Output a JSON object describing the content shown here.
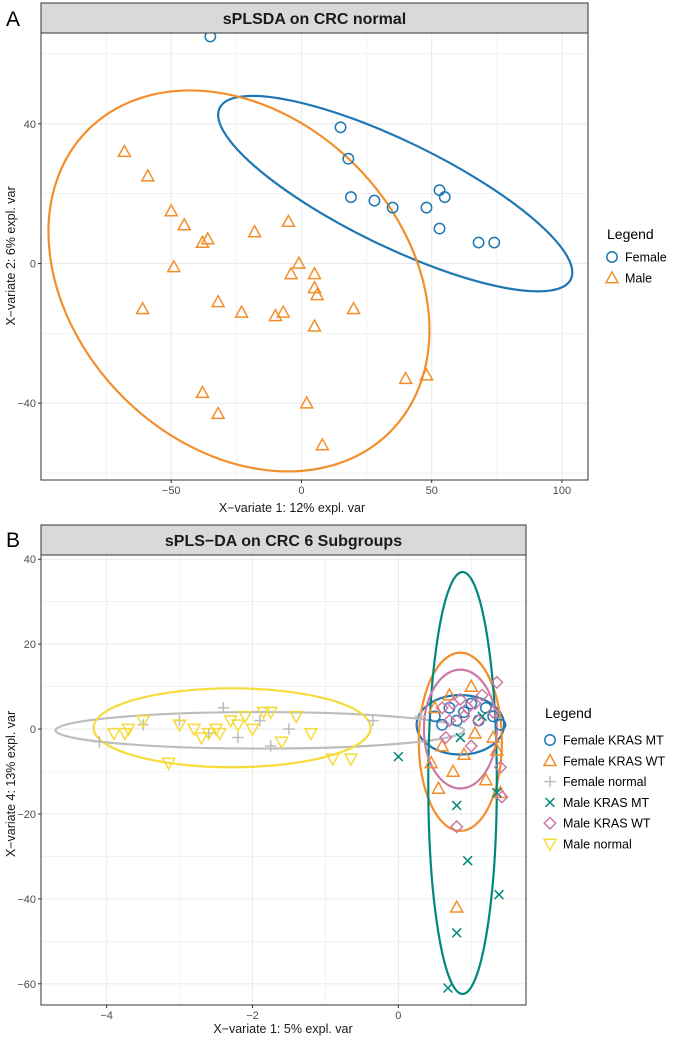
{
  "chart_data": [
    {
      "panel_label": "A",
      "type": "scatter",
      "title": "sPLSDA on CRC normal",
      "xlabel": "X−variate 1: 12% expl. var",
      "ylabel": "X−variate 2: 6% expl. var",
      "xlim": [
        -100,
        110
      ],
      "ylim": [
        -62,
        66
      ],
      "xticks": [
        -50,
        0,
        50,
        100
      ],
      "yticks": [
        -40,
        0,
        40
      ],
      "legend_title": "Legend",
      "legend_position": "right",
      "grid": true,
      "series": [
        {
          "name": "Female",
          "color": "#1f78b4",
          "marker": "circle",
          "points": [
            [
              -35,
              65
            ],
            [
              15,
              39
            ],
            [
              18,
              30
            ],
            [
              19,
              19
            ],
            [
              28,
              18
            ],
            [
              35,
              16
            ],
            [
              48,
              16
            ],
            [
              53,
              21
            ],
            [
              55,
              19
            ],
            [
              53,
              10
            ],
            [
              68,
              6
            ],
            [
              74,
              6
            ]
          ],
          "ellipse": {
            "center": [
              36,
              20
            ],
            "semi_axes": [
              75,
              15
            ],
            "angle_deg": -26
          }
        },
        {
          "name": "Male",
          "color": "#f28e2b",
          "marker": "triangle",
          "points": [
            [
              -68,
              32
            ],
            [
              -59,
              25
            ],
            [
              -50,
              15
            ],
            [
              -45,
              11
            ],
            [
              -38,
              6
            ],
            [
              -36,
              7
            ],
            [
              -49,
              -1
            ],
            [
              -61,
              -13
            ],
            [
              -32,
              -11
            ],
            [
              -23,
              -14
            ],
            [
              -18,
              9
            ],
            [
              -10,
              -15
            ],
            [
              -5,
              12
            ],
            [
              -4,
              -3
            ],
            [
              -1,
              0
            ],
            [
              -7,
              -14
            ],
            [
              5,
              -7
            ],
            [
              6,
              -9
            ],
            [
              5,
              -3
            ],
            [
              5,
              -18
            ],
            [
              20,
              -13
            ],
            [
              -38,
              -37
            ],
            [
              -32,
              -43
            ],
            [
              2,
              -40
            ],
            [
              40,
              -33
            ],
            [
              48,
              -32
            ],
            [
              8,
              -52
            ]
          ],
          "ellipse": {
            "center": [
              -24,
              -5
            ],
            "semi_axes": [
              82,
              47
            ],
            "angle_deg": -45
          }
        }
      ]
    },
    {
      "panel_label": "B",
      "type": "scatter",
      "title": "sPLS−DA on CRC 6 Subgroups",
      "xlabel": "X−variate 1: 5% expl. var",
      "ylabel": "X−variate 4: 13% expl. var",
      "xlim": [
        -4.9,
        1.75
      ],
      "ylim": [
        -65,
        41
      ],
      "xticks": [
        -4,
        -2,
        0
      ],
      "yticks": [
        -60,
        -40,
        -20,
        0,
        20,
        40
      ],
      "legend_title": "Legend",
      "legend_position": "right",
      "grid": true,
      "series": [
        {
          "name": "Female KRAS MT",
          "color": "#1f78b4",
          "marker": "circle",
          "points": [
            [
              0.5,
              3
            ],
            [
              0.7,
              5
            ],
            [
              0.9,
              4
            ],
            [
              1.1,
              2
            ],
            [
              1.3,
              3
            ],
            [
              0.6,
              1
            ],
            [
              1.0,
              6
            ],
            [
              0.8,
              2
            ],
            [
              1.2,
              5
            ],
            [
              1.4,
              1
            ]
          ],
          "ellipse": {
            "center": [
              0.85,
              1
            ],
            "semi_axes": [
              0.6,
              7
            ],
            "angle_deg": 0
          }
        },
        {
          "name": "Female KRAS WT",
          "color": "#f28e2b",
          "marker": "triangle",
          "points": [
            [
              0.45,
              -8
            ],
            [
              0.6,
              -4
            ],
            [
              0.75,
              -10
            ],
            [
              0.9,
              -6
            ],
            [
              1.05,
              -1
            ],
            [
              1.2,
              -12
            ],
            [
              1.35,
              -5
            ],
            [
              0.55,
              -14
            ],
            [
              0.8,
              -42
            ],
            [
              1.4,
              -15
            ],
            [
              0.7,
              8
            ],
            [
              1.0,
              10
            ],
            [
              0.5,
              5
            ],
            [
              1.3,
              -2
            ]
          ],
          "ellipse": {
            "center": [
              0.85,
              -3
            ],
            "semi_axes": [
              0.57,
              21
            ],
            "angle_deg": 0
          }
        },
        {
          "name": "Female normal",
          "color": "#bdbdbd",
          "marker": "plus",
          "points": [
            [
              -4.1,
              -3
            ],
            [
              -3.5,
              1
            ],
            [
              -3.0,
              2
            ],
            [
              -2.6,
              -1
            ],
            [
              -2.4,
              5
            ],
            [
              -2.2,
              -2
            ],
            [
              -1.9,
              2
            ],
            [
              -1.75,
              -4
            ],
            [
              -1.5,
              0
            ],
            [
              -0.35,
              2
            ],
            [
              0.3,
              3
            ]
          ],
          "ellipse": {
            "center": [
              -1.9,
              -0.3
            ],
            "semi_axes": [
              2.8,
              4.3
            ],
            "angle_deg": 0
          }
        },
        {
          "name": "Male KRAS MT",
          "color": "#00897b",
          "marker": "x",
          "points": [
            [
              0.0,
              -6.5
            ],
            [
              0.8,
              -18
            ],
            [
              0.95,
              -31
            ],
            [
              1.38,
              -39
            ],
            [
              0.8,
              -48
            ],
            [
              0.68,
              -61
            ],
            [
              1.35,
              -15
            ],
            [
              0.85,
              -2
            ],
            [
              1.15,
              3
            ]
          ],
          "ellipse": {
            "center": [
              0.88,
              -12.7
            ],
            "semi_axes": [
              0.47,
              49.7
            ],
            "angle_deg": 0
          }
        },
        {
          "name": "Male KRAS WT",
          "color": "#cc79a7",
          "marker": "diamond",
          "points": [
            [
              0.6,
              5
            ],
            [
              0.75,
              6
            ],
            [
              0.85,
              7
            ],
            [
              0.95,
              5
            ],
            [
              1.05,
              6
            ],
            [
              1.15,
              8
            ],
            [
              0.7,
              2
            ],
            [
              0.9,
              3
            ],
            [
              1.1,
              2
            ],
            [
              1.3,
              4
            ],
            [
              1.35,
              11
            ],
            [
              1.4,
              -9
            ],
            [
              0.8,
              -23
            ],
            [
              1.42,
              -16
            ],
            [
              0.65,
              -2
            ],
            [
              1.0,
              -4
            ]
          ],
          "ellipse": {
            "center": [
              0.85,
              0
            ],
            "semi_axes": [
              0.5,
              14
            ],
            "angle_deg": 0
          }
        },
        {
          "name": "Male normal",
          "color": "#f5dc3a",
          "marker": "triangle-down",
          "points": [
            [
              -3.9,
              -1
            ],
            [
              -3.75,
              -1
            ],
            [
              -3.7,
              0
            ],
            [
              -3.5,
              2
            ],
            [
              -3.15,
              -8
            ],
            [
              -3.0,
              1
            ],
            [
              -2.8,
              0
            ],
            [
              -2.7,
              -2
            ],
            [
              -2.6,
              -1
            ],
            [
              -2.5,
              0
            ],
            [
              -2.45,
              -1
            ],
            [
              -2.3,
              2
            ],
            [
              -2.2,
              1
            ],
            [
              -2.0,
              0
            ],
            [
              -1.85,
              4
            ],
            [
              -1.75,
              4
            ],
            [
              -1.6,
              -3
            ],
            [
              -1.4,
              3
            ],
            [
              -1.2,
              -1
            ],
            [
              -0.9,
              -7
            ],
            [
              -0.65,
              -7
            ],
            [
              -2.1,
              3
            ]
          ],
          "ellipse": {
            "center": [
              -2.28,
              0.3
            ],
            "semi_axes": [
              1.9,
              9.3
            ],
            "angle_deg": 0
          }
        }
      ]
    }
  ]
}
